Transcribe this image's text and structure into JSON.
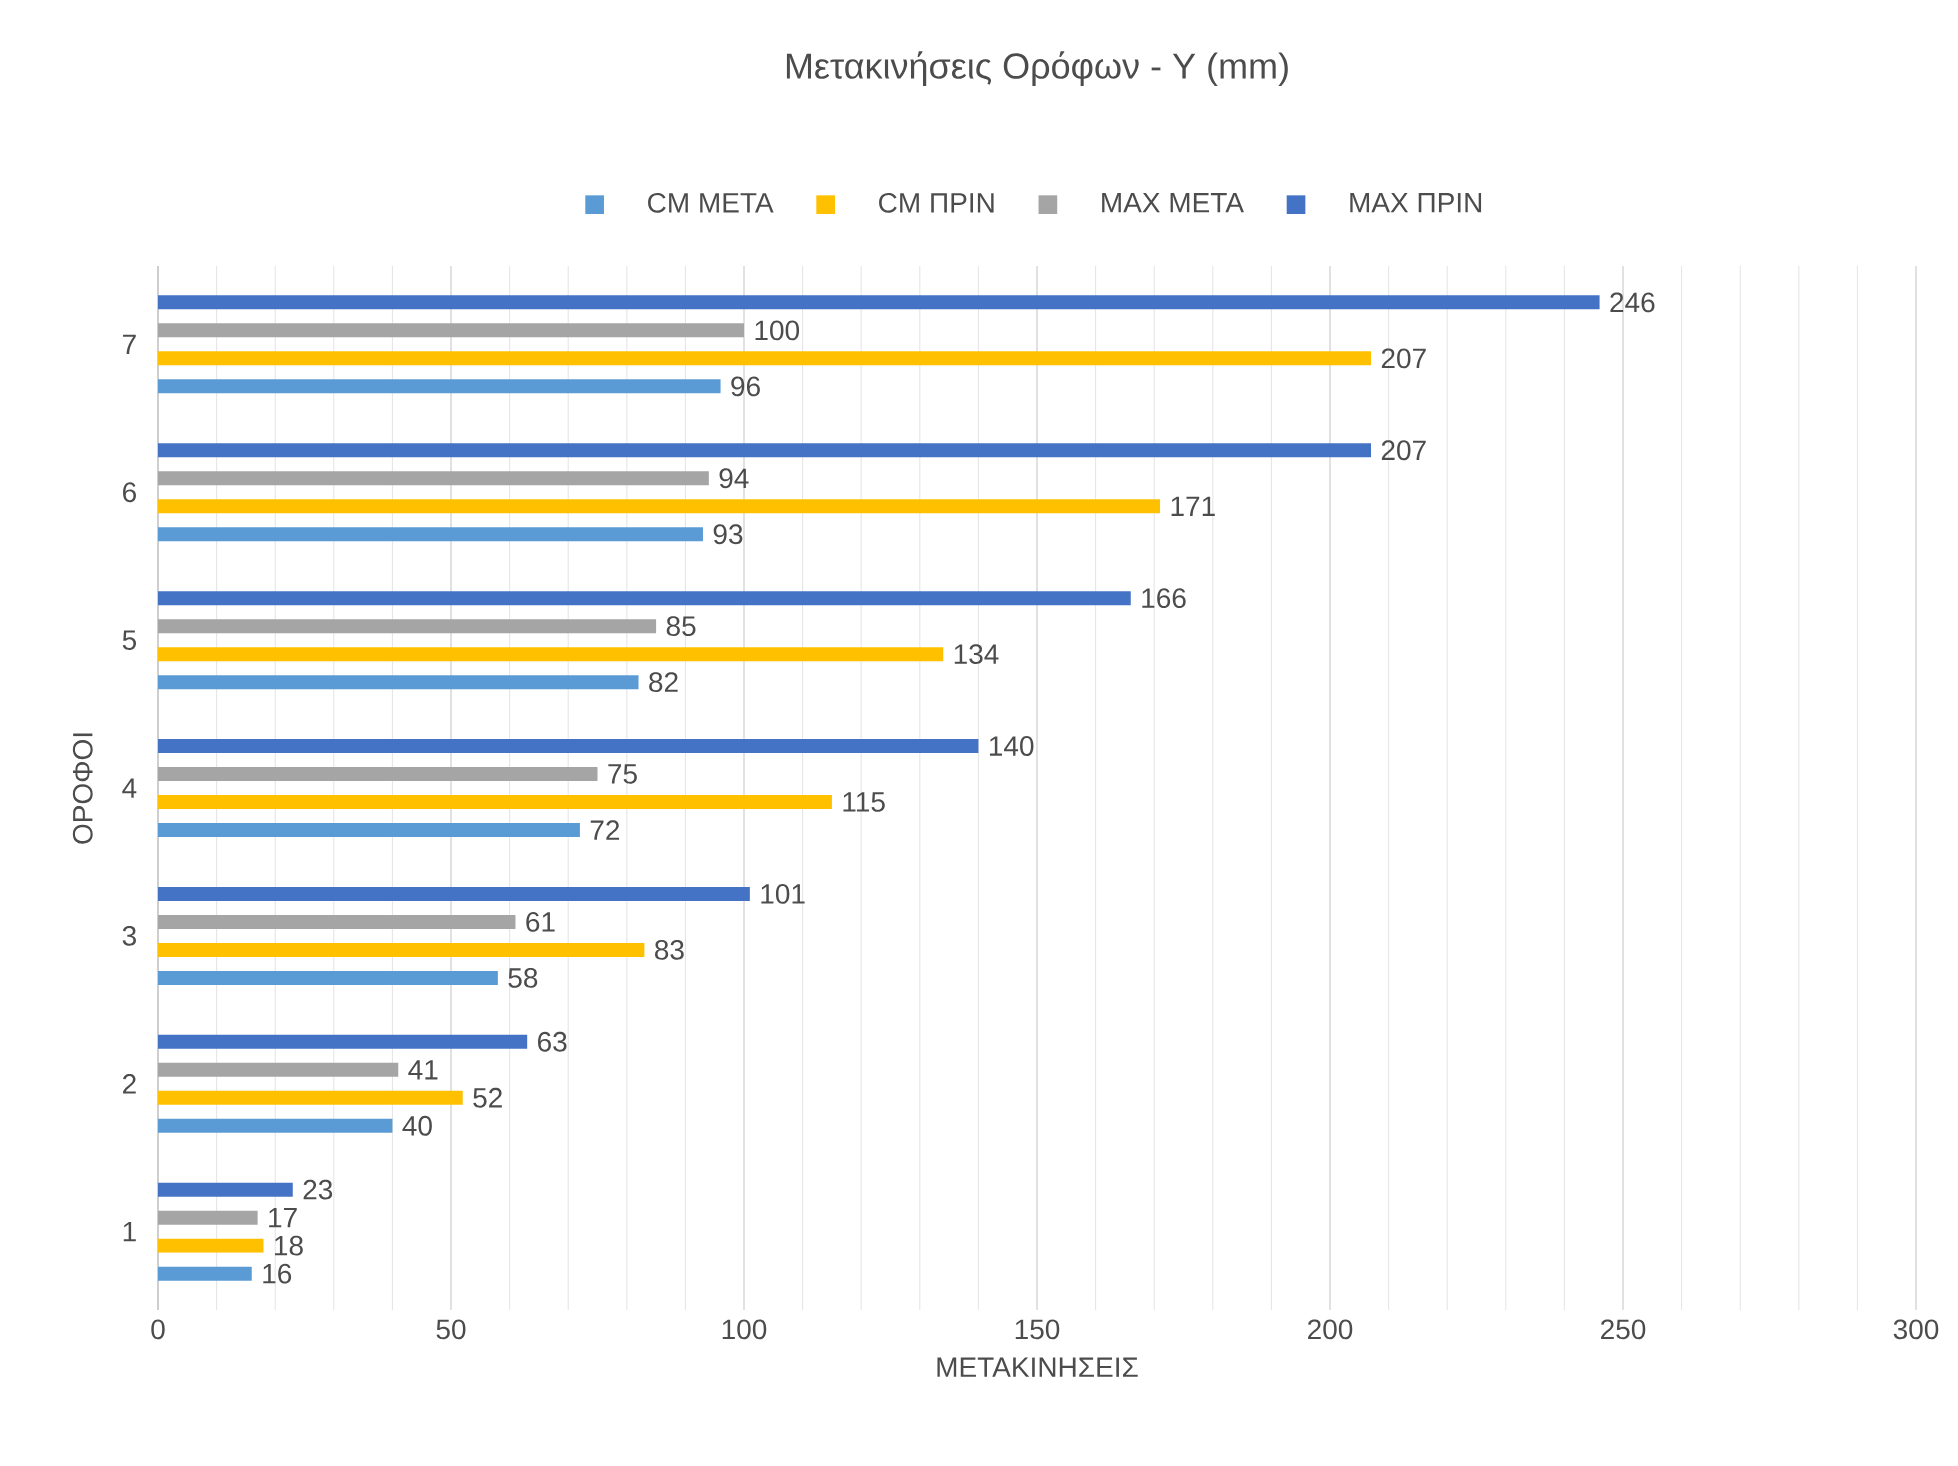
{
  "chart_data": {
    "type": "bar",
    "orientation": "horizontal",
    "title": "Μετακινήσεις Ορόφων - Y (mm)",
    "xlabel": "ΜΕΤΑΚΙΝΗΣΕΙΣ",
    "ylabel": "ΟΡΟΦΟΙ",
    "categories": [
      "7",
      "6",
      "5",
      "4",
      "3",
      "2",
      "1"
    ],
    "series": [
      {
        "name": "CM ΜΕΤΑ",
        "color": "#5b9bd5",
        "values": [
          96,
          93,
          82,
          72,
          58,
          40,
          16
        ]
      },
      {
        "name": "CM ΠΡΙΝ",
        "color": "#ffc000",
        "values": [
          207,
          171,
          134,
          115,
          83,
          52,
          18
        ]
      },
      {
        "name": "MAX ΜΕΤΑ",
        "color": "#a5a5a5",
        "values": [
          100,
          94,
          85,
          75,
          61,
          41,
          17
        ]
      },
      {
        "name": "MAX ΠΡΙΝ",
        "color": "#4472c4",
        "values": [
          246,
          207,
          166,
          140,
          101,
          63,
          23
        ]
      }
    ],
    "xlim": [
      0,
      300
    ],
    "xticks": [
      0,
      50,
      100,
      150,
      200,
      250,
      300
    ],
    "grid": "x",
    "legend": "top",
    "data_labels": true
  }
}
